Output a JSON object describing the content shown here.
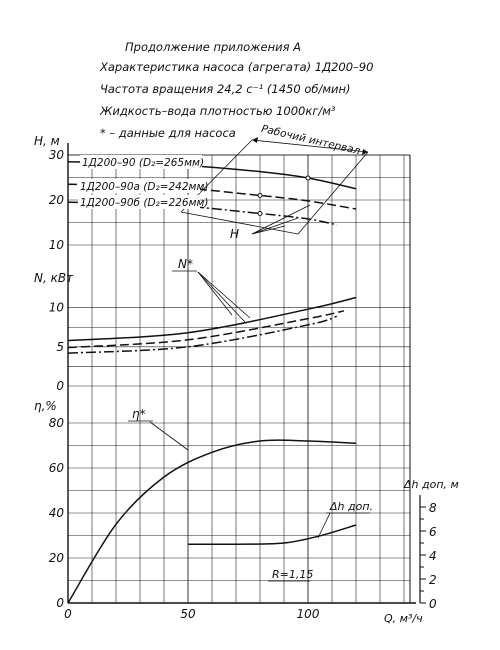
{
  "header": {
    "line1": "Продолжение приложения А",
    "line2": "Характеристика насоса (агрегата) 1Д200–90",
    "line3": "Частота вращения 24,2 с⁻¹ (1450 об/мин)",
    "line4": "Жидкость–вода плотностью 1000кг/м³",
    "line5": "* – данные для насоса"
  },
  "chart_data": {
    "type": "line",
    "x": {
      "label": "Q, м³/ч",
      "range": [
        0,
        125
      ],
      "ticks": [
        "0",
        "50",
        "100"
      ]
    },
    "grid": true,
    "panels": [
      {
        "id": "head",
        "ylabel": "H, м",
        "ylim": [
          10,
          30
        ],
        "ticks": [
          "10",
          "20",
          "30"
        ],
        "series": [
          {
            "name": "1Д200–90 (D₂=265мм)",
            "style": "solid",
            "x": [
              0,
              40,
              80,
              100,
              120
            ],
            "y": [
              28.5,
              28.0,
              26.3,
              24.9,
              22.5
            ]
          },
          {
            "name": "1Д200–90а (D₂=242мм)",
            "style": "dash",
            "x": [
              0,
              40,
              80,
              100,
              120
            ],
            "y": [
              23.5,
              23.0,
              21.0,
              19.8,
              18.0
            ]
          },
          {
            "name": "1Д200–90б (D₂=226мм)",
            "style": "dashdot",
            "x": [
              0,
              40,
              80,
              100,
              112
            ],
            "y": [
              19.5,
              19.0,
              17.0,
              15.8,
              14.5
            ]
          }
        ],
        "annotations": {
          "working_range": "Рабочий интервал",
          "curve_label": "H"
        }
      },
      {
        "id": "power",
        "ylabel": "N, кВт",
        "ylim": [
          0,
          12
        ],
        "ticks": [
          "0",
          "5",
          "10"
        ],
        "series": [
          {
            "name": "1Д200–90",
            "style": "solid",
            "x": [
              0,
              50,
              100,
              120
            ],
            "y": [
              5.8,
              6.8,
              9.8,
              11.3
            ]
          },
          {
            "name": "1Д200–90а",
            "style": "dash",
            "x": [
              0,
              50,
              100,
              115
            ],
            "y": [
              4.9,
              5.9,
              8.6,
              9.6
            ]
          },
          {
            "name": "1Д200–90б",
            "style": "dashdot",
            "x": [
              0,
              50,
              100,
              112
            ],
            "y": [
              4.2,
              5.0,
              7.8,
              8.9
            ]
          }
        ],
        "annotations": {
          "curve_label": "N*"
        }
      },
      {
        "id": "efficiency",
        "ylabel": "η,%",
        "ylim": [
          0,
          80
        ],
        "ticks": [
          "0",
          "20",
          "40",
          "60",
          "80"
        ],
        "series": [
          {
            "name": "η*",
            "style": "solid",
            "x": [
              0,
              20,
              40,
              60,
              80,
              100,
              120
            ],
            "y": [
              0,
              35,
              56,
              67,
              72,
              72,
              71
            ]
          }
        ],
        "annotations": {
          "curve_label": "η*"
        }
      },
      {
        "id": "npsh",
        "ylabel": "Δh доп, м",
        "ylim": [
          0,
          8
        ],
        "ticks": [
          "0",
          "2",
          "4",
          "6",
          "8"
        ],
        "series": [
          {
            "name": "Δh доп",
            "style": "solid",
            "x": [
              50,
              70,
              90,
              105,
              120
            ],
            "y": [
              4.9,
              4.9,
              5.0,
              5.6,
              6.5
            ]
          }
        ],
        "annotations": {
          "curve_label": "Δh доп.",
          "note": "R=1,15"
        }
      }
    ]
  }
}
